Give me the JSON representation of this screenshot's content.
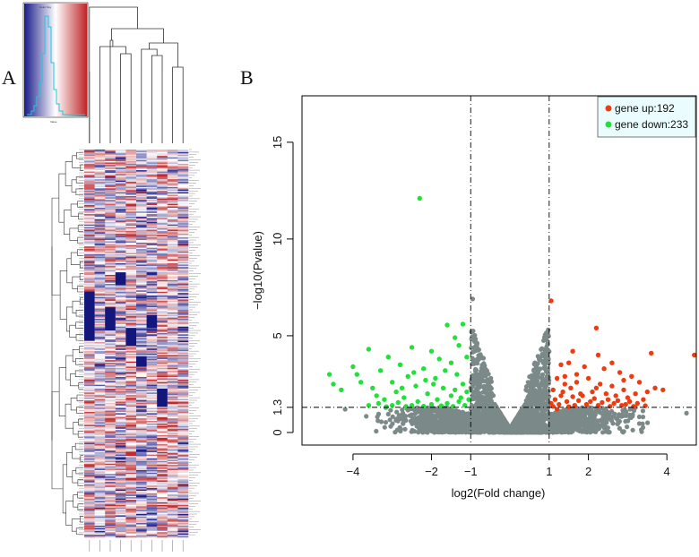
{
  "panels": {
    "a": "A",
    "b": "B"
  },
  "heatmap": {
    "color_key_title": "Color Key",
    "color_key_xlabel": "Value",
    "columns": 10,
    "palette": {
      "low": "#1c1f8a",
      "mid": "#ffffff",
      "high": "#c0282a"
    }
  },
  "chart_data": {
    "type": "scatter",
    "title": "",
    "xlabel": "log2(Fold change)",
    "ylabel": "−log10(Pvalue)",
    "xlim": [
      -5.3,
      4.75
    ],
    "ylim": [
      -0.65,
      17.4
    ],
    "x_ticks": [
      {
        "value": -4,
        "label": "−4"
      },
      {
        "value": -2,
        "label": "−2"
      },
      {
        "value": -1,
        "label": "−1"
      },
      {
        "value": 1,
        "label": "1"
      },
      {
        "value": 2,
        "label": "2"
      },
      {
        "value": 4,
        "label": "4"
      }
    ],
    "y_ticks": [
      {
        "value": 0,
        "label": "0"
      },
      {
        "value": 1.3,
        "label": "1.3"
      },
      {
        "value": 5,
        "label": "5"
      },
      {
        "value": 10,
        "label": "10"
      },
      {
        "value": 15,
        "label": "15"
      }
    ],
    "thresholds": {
      "x": [
        -1,
        1
      ],
      "y": 1.3
    },
    "legend": {
      "position": "top-right",
      "entries": [
        {
          "label": "gene up:192",
          "color": "#ee3b0f"
        },
        {
          "label": "gene down:233",
          "color": "#22e03a"
        }
      ]
    },
    "series": [
      {
        "name": "up",
        "color": "#ee3b0f",
        "points": [
          [
            1.05,
            6.8
          ],
          [
            2.2,
            5.4
          ],
          [
            3.6,
            4.1
          ],
          [
            4.7,
            4.0
          ],
          [
            1.6,
            4.2
          ],
          [
            2.25,
            4.0
          ],
          [
            1.3,
            3.5
          ],
          [
            1.5,
            3.6
          ],
          [
            1.9,
            3.4
          ],
          [
            2.4,
            3.3
          ],
          [
            2.8,
            3.1
          ],
          [
            3.1,
            2.9
          ],
          [
            3.3,
            2.6
          ],
          [
            3.7,
            2.3
          ],
          [
            3.9,
            2.2
          ],
          [
            1.2,
            2.8
          ],
          [
            1.4,
            2.9
          ],
          [
            1.7,
            2.6
          ],
          [
            2.0,
            2.8
          ],
          [
            2.3,
            2.5
          ],
          [
            2.6,
            2.4
          ],
          [
            2.9,
            2.2
          ],
          [
            3.2,
            2.0
          ],
          [
            1.1,
            2.2
          ],
          [
            1.35,
            2.1
          ],
          [
            1.55,
            2.3
          ],
          [
            1.8,
            2.0
          ],
          [
            2.1,
            2.1
          ],
          [
            2.45,
            2.0
          ],
          [
            2.7,
            1.9
          ],
          [
            3.0,
            1.8
          ],
          [
            3.4,
            1.7
          ],
          [
            1.15,
            1.7
          ],
          [
            1.45,
            1.6
          ],
          [
            1.75,
            1.65
          ],
          [
            2.05,
            1.6
          ],
          [
            2.35,
            1.55
          ],
          [
            2.65,
            1.5
          ],
          [
            2.95,
            1.45
          ],
          [
            3.25,
            1.5
          ],
          [
            1.25,
            1.45
          ],
          [
            1.65,
            1.4
          ],
          [
            1.95,
            1.45
          ],
          [
            2.25,
            1.4
          ],
          [
            2.55,
            1.35
          ],
          [
            2.85,
            1.4
          ],
          [
            3.15,
            1.35
          ],
          [
            3.45,
            1.38
          ],
          [
            1.1,
            1.35
          ],
          [
            1.5,
            1.33
          ],
          [
            1.85,
            1.9
          ],
          [
            2.15,
            1.75
          ],
          [
            2.5,
            1.7
          ],
          [
            2.75,
            1.65
          ],
          [
            3.05,
            1.6
          ],
          [
            1.3,
            1.9
          ],
          [
            1.6,
            1.85
          ],
          [
            2.2,
            2.3
          ],
          [
            1.4,
            2.5
          ],
          [
            2.9,
            2.7
          ],
          [
            1.05,
            1.5
          ],
          [
            1.2,
            1.2
          ],
          [
            1.7,
            3.0
          ],
          [
            2.6,
            3.6
          ],
          [
            3.5,
            2.1
          ]
        ]
      },
      {
        "name": "down",
        "color": "#22e03a",
        "points": [
          [
            -2.3,
            12.1
          ],
          [
            -1.2,
            5.6
          ],
          [
            -1.6,
            5.55
          ],
          [
            -1.4,
            4.9
          ],
          [
            -4.6,
            3.0
          ],
          [
            -4.0,
            3.4
          ],
          [
            -3.1,
            3.9
          ],
          [
            -3.6,
            4.3
          ],
          [
            -2.5,
            4.4
          ],
          [
            -2.0,
            4.2
          ],
          [
            -1.3,
            4.5
          ],
          [
            -1.8,
            3.8
          ],
          [
            -2.8,
            3.5
          ],
          [
            -3.3,
            3.2
          ],
          [
            -3.8,
            2.6
          ],
          [
            -4.3,
            2.2
          ],
          [
            -2.2,
            3.3
          ],
          [
            -1.5,
            3.6
          ],
          [
            -1.1,
            3.9
          ],
          [
            -2.6,
            2.9
          ],
          [
            -3.0,
            2.6
          ],
          [
            -3.5,
            2.3
          ],
          [
            -1.9,
            2.8
          ],
          [
            -1.35,
            3.0
          ],
          [
            -2.4,
            2.4
          ],
          [
            -2.9,
            2.1
          ],
          [
            -3.4,
            1.9
          ],
          [
            -1.7,
            2.3
          ],
          [
            -1.2,
            2.5
          ],
          [
            -2.1,
            2.0
          ],
          [
            -2.7,
            1.8
          ],
          [
            -3.2,
            1.7
          ],
          [
            -1.5,
            1.9
          ],
          [
            -1.1,
            2.1
          ],
          [
            -1.85,
            1.7
          ],
          [
            -2.35,
            1.6
          ],
          [
            -2.85,
            1.55
          ],
          [
            -3.35,
            1.5
          ],
          [
            -1.3,
            1.6
          ],
          [
            -1.6,
            1.5
          ],
          [
            -2.0,
            1.45
          ],
          [
            -2.5,
            1.4
          ],
          [
            -3.0,
            1.4
          ],
          [
            -3.6,
            1.4
          ],
          [
            -1.15,
            1.4
          ],
          [
            -1.45,
            1.35
          ],
          [
            -1.75,
            1.38
          ],
          [
            -2.2,
            1.36
          ],
          [
            -2.65,
            1.35
          ],
          [
            -3.15,
            1.33
          ],
          [
            -1.05,
            1.7
          ],
          [
            -1.25,
            1.8
          ],
          [
            -4.5,
            2.5
          ],
          [
            -3.9,
            3.0
          ],
          [
            -2.15,
            2.7
          ],
          [
            -1.65,
            3.2
          ],
          [
            -2.45,
            3.1
          ],
          [
            -1.95,
            2.5
          ],
          [
            -1.4,
            2.2
          ],
          [
            -2.75,
            2.3
          ]
        ]
      }
    ]
  }
}
